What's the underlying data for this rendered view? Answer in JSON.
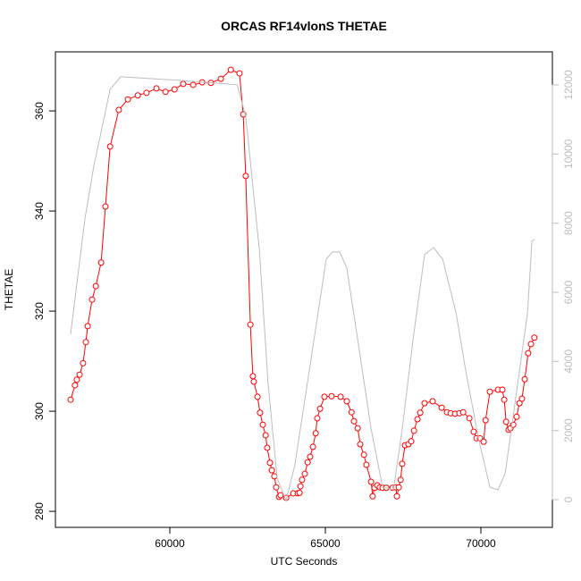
{
  "chart_data": {
    "type": "line",
    "title": "ORCAS RF14vlonS THETAE",
    "xlabel": "UTC Seconds",
    "ylabel": "THETAE",
    "xlim": [
      56322,
      72299
    ],
    "xticks": [
      60000,
      65000,
      70000
    ],
    "ylim": [
      276.8,
      371.8
    ],
    "yticks": [
      280,
      300,
      320,
      340,
      360
    ],
    "y2lim": [
      -802,
      12957
    ],
    "y2ticks": [
      0,
      2000,
      4000,
      6000,
      8000,
      10000,
      12000
    ],
    "series": [
      {
        "color": "#ff0000",
        "marker": "circle",
        "x": [
          56810,
          56950,
          57010,
          57100,
          57210,
          57300,
          57360,
          57500,
          57620,
          57790,
          57930,
          58080,
          58360,
          58650,
          58970,
          59250,
          59570,
          59860,
          60150,
          60430,
          60750,
          61040,
          61320,
          61640,
          61960,
          62240,
          62360,
          62440,
          62590,
          62670,
          62700,
          62820,
          62900,
          62990,
          63080,
          63130,
          63220,
          63280,
          63360,
          63420,
          63510,
          63560,
          63740,
          63970,
          64110,
          64170,
          64200,
          64250,
          64340,
          64430,
          64510,
          64600,
          64690,
          64740,
          64830,
          64970,
          65200,
          65490,
          65690,
          65840,
          65920,
          66040,
          66120,
          66240,
          66320,
          66470,
          66520,
          66580,
          66670,
          66750,
          66840,
          66960,
          67160,
          67270,
          67300,
          67360,
          67420,
          67470,
          67560,
          67670,
          67760,
          67850,
          67960,
          68050,
          68190,
          68450,
          68740,
          68910,
          69030,
          69170,
          69310,
          69430,
          69630,
          69770,
          69860,
          69970,
          70090,
          70150,
          70290,
          70550,
          70690,
          70750,
          70810,
          70890,
          70950,
          71040,
          71150,
          71240,
          71320,
          71410,
          71520,
          71610,
          71720
        ],
        "values": [
          302.3,
          305.2,
          306.3,
          307.3,
          309.6,
          313.8,
          317.0,
          322.3,
          325.0,
          329.7,
          340.9,
          352.9,
          360.2,
          362.3,
          363.1,
          363.6,
          364.5,
          363.8,
          364.3,
          365.4,
          365.2,
          365.7,
          365.6,
          366.4,
          368.2,
          367.5,
          359.3,
          347.0,
          317.3,
          307.0,
          305.9,
          302.9,
          299.7,
          297.3,
          295.2,
          292.7,
          289.7,
          288.2,
          287.0,
          284.8,
          282.9,
          283.2,
          282.7,
          283.6,
          283.6,
          283.7,
          285.0,
          286.3,
          287.5,
          289.8,
          290.9,
          292.9,
          295.6,
          298.6,
          300.5,
          302.9,
          303.0,
          302.9,
          302.0,
          299.8,
          298.0,
          296.6,
          293.4,
          291.3,
          289.3,
          285.9,
          283.0,
          284.7,
          285.2,
          284.8,
          284.7,
          284.7,
          284.7,
          284.8,
          283.0,
          284.8,
          286.3,
          289.5,
          293.2,
          293.4,
          294.0,
          296.1,
          298.4,
          299.7,
          301.6,
          302.0,
          300.7,
          299.8,
          299.6,
          299.5,
          299.6,
          299.8,
          298.6,
          295.9,
          294.6,
          294.6,
          293.9,
          298.2,
          303.9,
          304.3,
          304.3,
          302.3,
          297.9,
          296.3,
          296.6,
          297.3,
          298.9,
          301.6,
          302.5,
          306.4,
          311.6,
          313.4,
          314.7
        ]
      },
      {
        "color": "#bebebe",
        "axis": "y2",
        "x": [
          56810,
          57270,
          57560,
          57790,
          58080,
          58420,
          60290,
          62160,
          62440,
          62880,
          63160,
          63450,
          63740,
          64020,
          64460,
          65030,
          65230,
          65460,
          65690,
          66040,
          66470,
          66840,
          67190,
          67470,
          67820,
          68190,
          68480,
          68770,
          69200,
          69490,
          69920,
          70290,
          70550,
          70780,
          71060,
          71500,
          71640,
          71720
        ],
        "values": [
          4786,
          8123,
          9675,
          10633,
          11874,
          12236,
          12133,
          12004,
          11098,
          7218,
          3337,
          621,
          -26,
          1009,
          3596,
          6959,
          7166,
          7166,
          6700,
          4631,
          2044,
          362,
          285,
          2044,
          4631,
          7089,
          7295,
          6959,
          5407,
          3855,
          1785,
          362,
          285,
          750,
          2561,
          5407,
          7476,
          7528
        ]
      }
    ]
  }
}
